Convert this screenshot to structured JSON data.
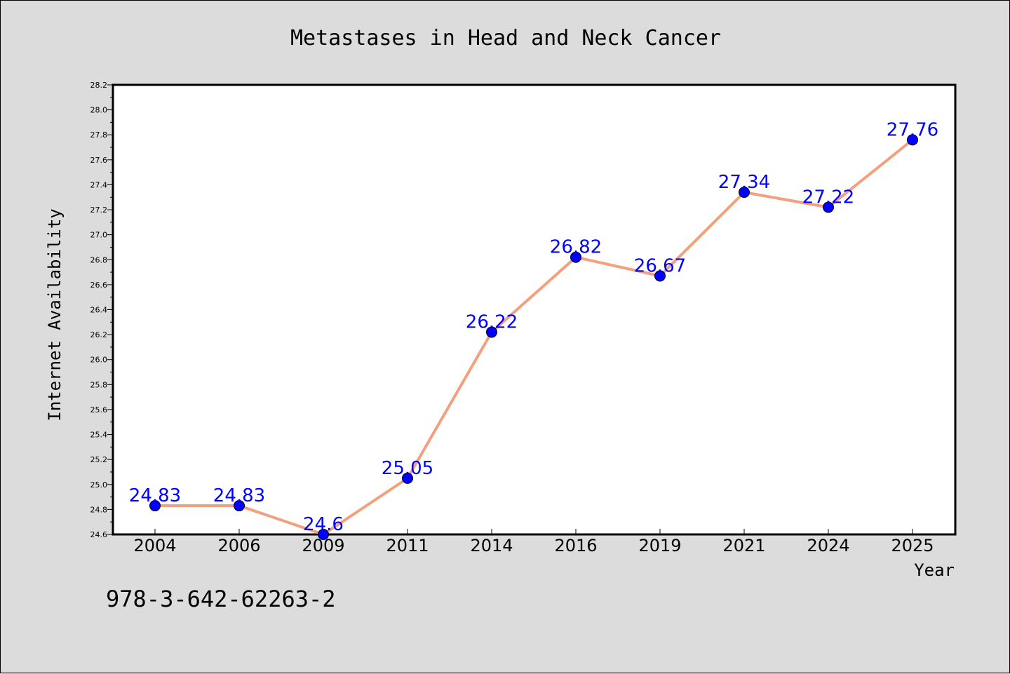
{
  "chart_data": {
    "type": "line",
    "title": "Metastases in Head and Neck Cancer",
    "xlabel": "Year",
    "ylabel": "Internet Availability",
    "categories": [
      "2004",
      "2006",
      "2009",
      "2011",
      "2014",
      "2016",
      "2019",
      "2021",
      "2024",
      "2025"
    ],
    "series": [
      {
        "values": [
          24.83,
          24.83,
          24.6,
          25.05,
          26.22,
          26.82,
          26.67,
          27.34,
          27.22,
          27.76
        ],
        "labels": [
          "24.83",
          "24.83",
          "24.6",
          "25.05",
          "26.22",
          "26.82",
          "26.67",
          "27.34",
          "27.22",
          "27.76"
        ],
        "line_color": "#f4a07e",
        "marker_color": "#0000ff"
      }
    ],
    "yticks": [
      "24.6",
      "24.8",
      "25.0",
      "25.2",
      "25.4",
      "25.6",
      "25.8",
      "26.0",
      "26.2",
      "26.4",
      "26.6",
      "26.8",
      "27.0",
      "27.2",
      "27.4",
      "27.6",
      "27.8",
      "28.0",
      "28.2"
    ],
    "ylim": [
      24.6,
      28.2
    ],
    "grid": false,
    "label_color": "#0000ff"
  },
  "annotation": "978-3-642-62263-2"
}
